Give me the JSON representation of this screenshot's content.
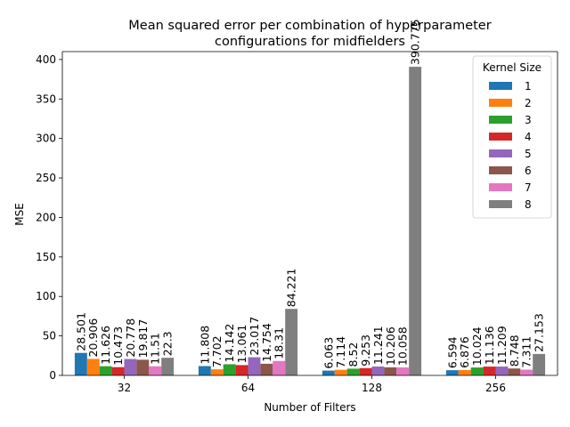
{
  "chart_data": {
    "type": "bar",
    "title": "Mean squared error per combination of hyperparameter configurations for midfielders",
    "title_lines": [
      "Mean squared error per combination of hyperparameter",
      "configurations for midfielders"
    ],
    "xlabel": "Number of Filters",
    "ylabel": "MSE",
    "categories": [
      "32",
      "64",
      "128",
      "256"
    ],
    "ylim": [
      0,
      410
    ],
    "yticks": [
      0,
      50,
      100,
      150,
      200,
      250,
      300,
      350,
      400
    ],
    "grid": false,
    "legend": {
      "title": "Kernel Size",
      "placement": "top-right"
    },
    "series": [
      {
        "name": "1",
        "color": "#1f77b4",
        "values": [
          28.501,
          11.808,
          6.063,
          6.594
        ]
      },
      {
        "name": "2",
        "color": "#ff7f0e",
        "values": [
          20.906,
          7.702,
          7.114,
          6.876
        ]
      },
      {
        "name": "3",
        "color": "#2ca02c",
        "values": [
          11.626,
          14.142,
          8.52,
          10.024
        ]
      },
      {
        "name": "4",
        "color": "#d62728",
        "values": [
          10.473,
          13.061,
          9.253,
          11.136
        ]
      },
      {
        "name": "5",
        "color": "#9467bd",
        "values": [
          20.778,
          23.017,
          11.241,
          11.209
        ]
      },
      {
        "name": "6",
        "color": "#8c564b",
        "values": [
          19.817,
          14.754,
          10.206,
          8.748
        ]
      },
      {
        "name": "7",
        "color": "#e377c2",
        "values": [
          11.51,
          18.31,
          10.058,
          7.311
        ]
      },
      {
        "name": "8",
        "color": "#7f7f7f",
        "values": [
          22.3,
          84.221,
          390.775,
          27.153
        ]
      }
    ]
  }
}
